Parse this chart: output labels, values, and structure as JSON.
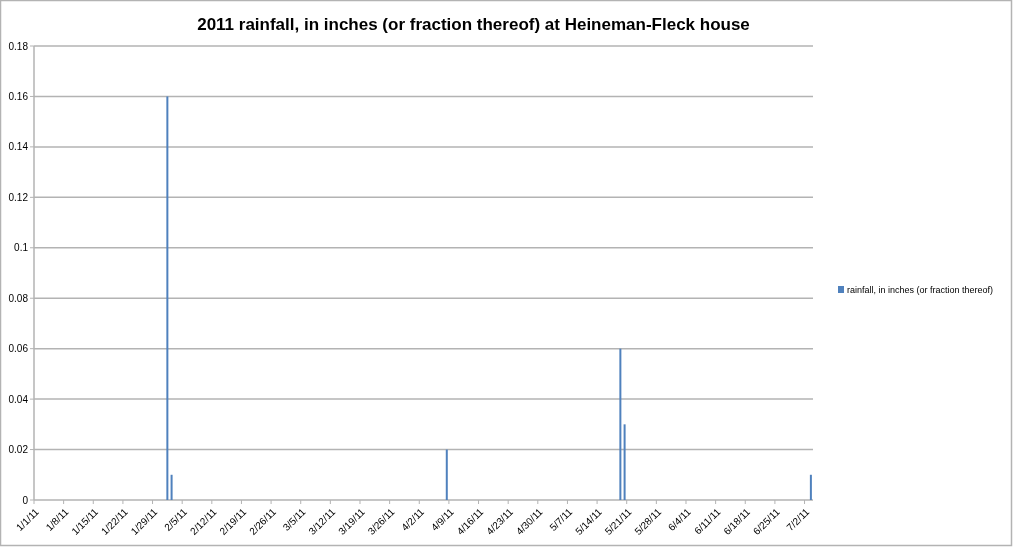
{
  "chart_data": {
    "type": "bar",
    "title": "2011 rainfall, in inches (or fraction thereof) at Heineman-Fleck house",
    "x": [
      "2011-02-01",
      "2011-02-02",
      "2011-04-08",
      "2011-05-19",
      "2011-05-20",
      "2011-07-03"
    ],
    "series": [
      {
        "name": "rainfall, in inches (or fraction thereof)",
        "color": "#4f81bd",
        "values": [
          0.16,
          0.01,
          0.02,
          0.06,
          0.03,
          0.01
        ]
      }
    ],
    "xlim": [
      "2011-01-01",
      "2011-07-04"
    ],
    "xticks": [
      {
        "value": "2011-01-01",
        "label": "1/1/11"
      },
      {
        "value": "2011-01-08",
        "label": "1/8/11"
      },
      {
        "value": "2011-01-15",
        "label": "1/15/11"
      },
      {
        "value": "2011-01-22",
        "label": "1/22/11"
      },
      {
        "value": "2011-01-29",
        "label": "1/29/11"
      },
      {
        "value": "2011-02-05",
        "label": "2/5/11"
      },
      {
        "value": "2011-02-12",
        "label": "2/12/11"
      },
      {
        "value": "2011-02-19",
        "label": "2/19/11"
      },
      {
        "value": "2011-02-26",
        "label": "2/26/11"
      },
      {
        "value": "2011-03-05",
        "label": "3/5/11"
      },
      {
        "value": "2011-03-12",
        "label": "3/12/11"
      },
      {
        "value": "2011-03-19",
        "label": "3/19/11"
      },
      {
        "value": "2011-03-26",
        "label": "3/26/11"
      },
      {
        "value": "2011-04-02",
        "label": "4/2/11"
      },
      {
        "value": "2011-04-09",
        "label": "4/9/11"
      },
      {
        "value": "2011-04-16",
        "label": "4/16/11"
      },
      {
        "value": "2011-04-23",
        "label": "4/23/11"
      },
      {
        "value": "2011-04-30",
        "label": "4/30/11"
      },
      {
        "value": "2011-05-07",
        "label": "5/7/11"
      },
      {
        "value": "2011-05-14",
        "label": "5/14/11"
      },
      {
        "value": "2011-05-21",
        "label": "5/21/11"
      },
      {
        "value": "2011-05-28",
        "label": "5/28/11"
      },
      {
        "value": "2011-06-04",
        "label": "6/4/11"
      },
      {
        "value": "2011-06-11",
        "label": "6/11/11"
      },
      {
        "value": "2011-06-18",
        "label": "6/18/11"
      },
      {
        "value": "2011-06-25",
        "label": "6/25/11"
      },
      {
        "value": "2011-07-02",
        "label": "7/2/11"
      }
    ],
    "ylim": [
      0,
      0.18
    ],
    "yticks": [
      0,
      0.02,
      0.04,
      0.06,
      0.08,
      0.1,
      0.12,
      0.14,
      0.16,
      0.18
    ],
    "grid": "y",
    "legend": "right"
  }
}
